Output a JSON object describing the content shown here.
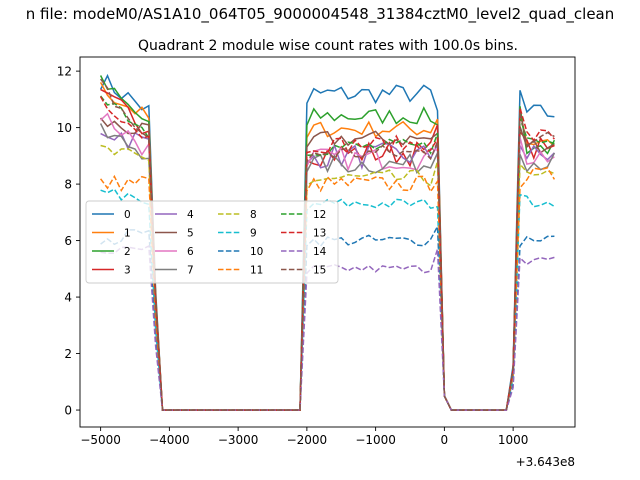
{
  "suptitle": "n file: modeM0/AS1A10_064T05_9000004548_31384cztM0_level2_quad_clean",
  "chart_data": {
    "type": "line",
    "title": "Quadrant 2 module wise count rates with 100.0s bins.",
    "xlabel": "",
    "ylabel": "",
    "x_offset_label": "+3.643e8",
    "xlim": [
      -5300,
      1900
    ],
    "ylim": [
      -0.6,
      12.5
    ],
    "xticks": [
      -5000,
      -4000,
      -3000,
      -2000,
      -1000,
      0,
      1000
    ],
    "xtick_labels": [
      "−5000",
      "−4000",
      "−3000",
      "−2000",
      "−1000",
      "0",
      "1000"
    ],
    "yticks": [
      0,
      2,
      4,
      6,
      8,
      10,
      12
    ],
    "ytick_labels": [
      "0",
      "2",
      "4",
      "6",
      "8",
      "10",
      "12"
    ],
    "grid": false,
    "legend_position": "center-left",
    "legend_ncol": 4,
    "series": [
      {
        "name": "0",
        "color": "#1f77b4",
        "dash": "solid",
        "level": 11.2,
        "fall": 10.6,
        "spread": 0.35,
        "peak": 11.7,
        "rise": 10.5
      },
      {
        "name": "1",
        "color": "#ff7f0e",
        "dash": "solid",
        "level": 9.95,
        "fall": 10.3,
        "spread": 0.3,
        "peak": 11.4,
        "rise": 9.5
      },
      {
        "name": "2",
        "color": "#2ca02c",
        "dash": "solid",
        "level": 10.4,
        "fall": 10.1,
        "spread": 0.3,
        "peak": 11.6,
        "rise": 9.3
      },
      {
        "name": "3",
        "color": "#d62728",
        "dash": "solid",
        "level": 9.1,
        "fall": 10.1,
        "spread": 0.45,
        "peak": 11.0,
        "rise": 9.2
      },
      {
        "name": "4",
        "color": "#9467bd",
        "dash": "solid",
        "level": 9.0,
        "fall": 9.4,
        "spread": 0.45,
        "peak": 10.0,
        "rise": 9.0
      },
      {
        "name": "5",
        "color": "#8c564b",
        "dash": "solid",
        "level": 9.6,
        "fall": 9.8,
        "spread": 0.3,
        "peak": 10.2,
        "rise": 9.4
      },
      {
        "name": "6",
        "color": "#e377c2",
        "dash": "solid",
        "level": 8.9,
        "fall": 9.2,
        "spread": 0.4,
        "peak": 10.5,
        "rise": 9.0
      },
      {
        "name": "7",
        "color": "#7f7f7f",
        "dash": "solid",
        "level": 8.7,
        "fall": 9.1,
        "spread": 0.35,
        "peak": 9.8,
        "rise": 8.8
      },
      {
        "name": "8",
        "color": "#bcbd22",
        "dash": "dashed",
        "level": 8.2,
        "fall": 8.8,
        "spread": 0.3,
        "peak": 9.2,
        "rise": 8.2
      },
      {
        "name": "9",
        "color": "#17becf",
        "dash": "dashed",
        "level": 7.3,
        "fall": 7.2,
        "spread": 0.2,
        "peak": 7.9,
        "rise": 7.4
      },
      {
        "name": "10",
        "color": "#1f77b4",
        "dash": "dashed",
        "level": 6.0,
        "fall": 6.5,
        "spread": 0.2,
        "peak": 5.8,
        "rise": 6.1
      },
      {
        "name": "11",
        "color": "#ff7f0e",
        "dash": "dashed",
        "level": 8.0,
        "fall": 8.1,
        "spread": 0.3,
        "peak": 8.0,
        "rise": 8.3
      },
      {
        "name": "12",
        "color": "#2ca02c",
        "dash": "dashed",
        "level": 9.3,
        "fall": 9.8,
        "spread": 0.3,
        "peak": 11.3,
        "rise": 9.5
      },
      {
        "name": "13",
        "color": "#d62728",
        "dash": "dashed",
        "level": 9.4,
        "fall": 9.6,
        "spread": 0.3,
        "peak": 11.1,
        "rise": 9.7
      },
      {
        "name": "14",
        "color": "#9467bd",
        "dash": "dashed",
        "level": 5.0,
        "fall": 5.7,
        "spread": 0.15,
        "peak": 5.6,
        "rise": 5.3
      },
      {
        "name": "15",
        "color": "#8c564b",
        "dash": "dashed",
        "level": 9.1,
        "fall": 9.5,
        "spread": 0.3,
        "peak": 11.5,
        "rise": 9.6
      }
    ]
  }
}
